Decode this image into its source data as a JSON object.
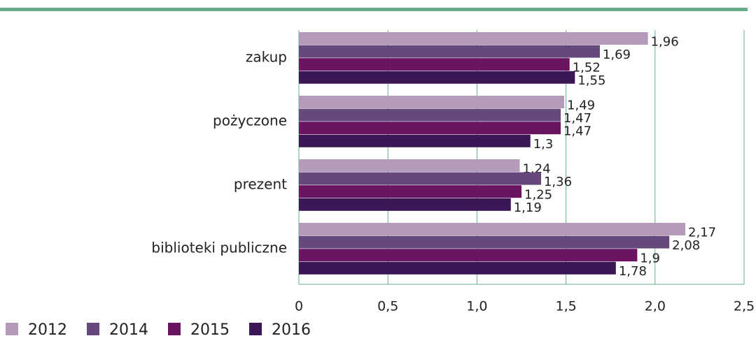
{
  "chart_data": {
    "type": "hbar",
    "categories": [
      "zakup",
      "pożyczone",
      "prezent",
      "biblioteki publiczne"
    ],
    "series": [
      {
        "name": "2012",
        "color": "#b39bb9",
        "values": [
          1.96,
          1.49,
          1.24,
          2.17
        ],
        "value_labels": [
          "1,96",
          "1,49",
          "1,24",
          "2,17"
        ]
      },
      {
        "name": "2014",
        "color": "#65497d",
        "values": [
          1.69,
          1.47,
          1.36,
          2.08
        ],
        "value_labels": [
          "1,69",
          "1,47",
          "1,36",
          "2,08"
        ]
      },
      {
        "name": "2015",
        "color": "#6b1462",
        "values": [
          1.52,
          1.47,
          1.25,
          1.9
        ],
        "value_labels": [
          "1,52",
          "1,47",
          "1,25",
          "1,9"
        ]
      },
      {
        "name": "2016",
        "color": "#3b1755",
        "values": [
          1.55,
          1.3,
          1.19,
          1.78
        ],
        "value_labels": [
          "1,55",
          "1,3",
          "1,19",
          "1,78"
        ]
      }
    ],
    "xlim": [
      0,
      2.5
    ],
    "xticks": [
      0,
      {
        "value": 0.5,
        "label": "0,5"
      },
      {
        "value": 1,
        "label": "1,0"
      },
      {
        "value": 1.5,
        "label": "1,5"
      },
      {
        "value": 2,
        "label": "2,0"
      },
      {
        "value": 2.5,
        "label": "2,5"
      }
    ],
    "grid": true,
    "legend": "bottom-left",
    "accent_color": "#6aab8a"
  }
}
